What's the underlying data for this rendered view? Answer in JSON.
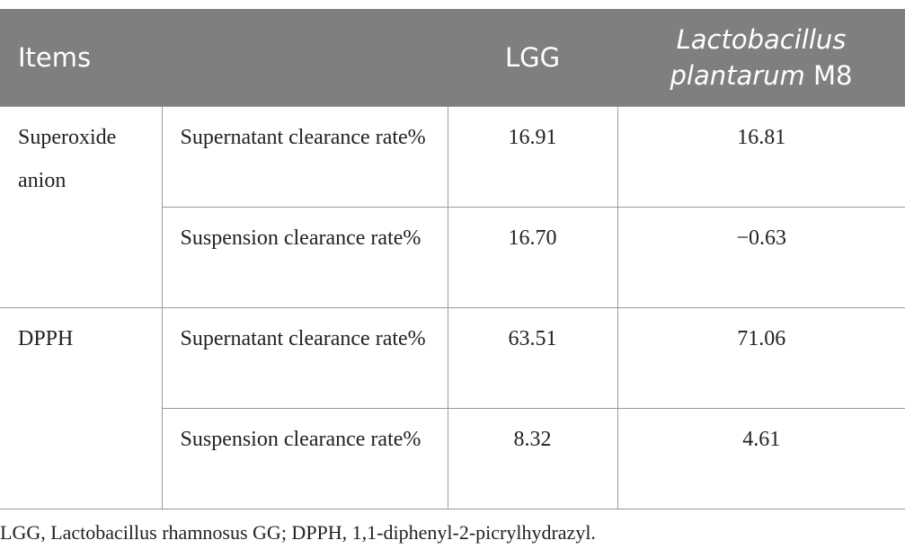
{
  "table": {
    "header": {
      "items": "Items",
      "lgg": "LGG",
      "m8": {
        "italic": "Lactobacillus plantarum",
        "plain": "M8"
      }
    },
    "groups": [
      {
        "name": "Superoxide anion",
        "rows": [
          [
            "Supernatant clearance rate%",
            "16.91",
            "16.81"
          ],
          [
            "Suspension clearance rate%",
            "16.70",
            "−0.63"
          ]
        ]
      },
      {
        "name": "DPPH",
        "rows": [
          [
            "Supernatant clearance rate%",
            "63.51",
            "71.06"
          ],
          [
            "Suspension clearance rate%",
            "8.32",
            "4.61"
          ]
        ]
      }
    ]
  },
  "footnote": "LGG, Lactobacillus rhamnosus GG; DPPH, 1,1-diphenyl-2-picrylhydrazyl."
}
